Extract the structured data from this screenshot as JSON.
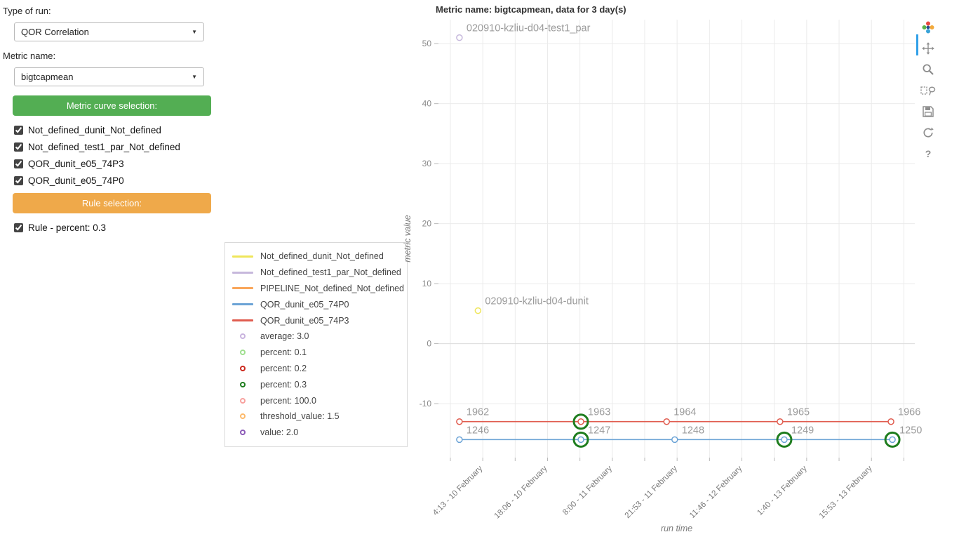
{
  "icons": {
    "caret": "▼",
    "help": "?"
  },
  "left_panel": {
    "type_of_run_label": "Type of run:",
    "type_of_run_value": "QOR Correlation",
    "metric_name_label": "Metric name:",
    "metric_name_value": "bigtcapmean",
    "metric_curve_button": "Metric curve selection:",
    "metric_curve_button_color": "#53ae53",
    "rule_button": "Rule selection:",
    "rule_button_color": "#efa94a",
    "curve_checkboxes": [
      {
        "label": "Not_defined_dunit_Not_defined",
        "checked": true
      },
      {
        "label": "Not_defined_test1_par_Not_defined",
        "checked": true
      },
      {
        "label": "QOR_dunit_e05_74P3",
        "checked": true
      },
      {
        "label": "QOR_dunit_e05_74P0",
        "checked": true
      }
    ],
    "rule_checkboxes": [
      {
        "label": "Rule - percent: 0.3",
        "checked": true
      }
    ]
  },
  "legend": {
    "line_items": [
      {
        "label": "Not_defined_dunit_Not_defined",
        "color": "#efe65a"
      },
      {
        "label": "Not_defined_test1_par_Not_defined",
        "color": "#c6b8dc"
      },
      {
        "label": "PIPELINE_Not_defined_Not_defined",
        "color": "#f9a65a"
      },
      {
        "label": "QOR_dunit_e05_74P0",
        "color": "#6ba3d6"
      },
      {
        "label": "QOR_dunit_e05_74P3",
        "color": "#e05c4f"
      }
    ],
    "marker_items": [
      {
        "label": "average: 3.0",
        "color": "#c9b3de"
      },
      {
        "label": "percent: 0.1",
        "color": "#9fdf8f"
      },
      {
        "label": "percent: 0.2",
        "color": "#cc2a1f"
      },
      {
        "label": "percent: 0.3",
        "color": "#1e7d1e"
      },
      {
        "label": "percent: 100.0",
        "color": "#f8a19e"
      },
      {
        "label": "threshold_value: 1.5",
        "color": "#fdba6b"
      },
      {
        "label": "value: 2.0",
        "color": "#8c5bb8"
      }
    ]
  },
  "modebar": {
    "help_label": "?",
    "logo_colors": [
      "#e8483f",
      "#f2a93b",
      "#3aa3d8",
      "#5ab349",
      "#274b8f"
    ]
  },
  "chart_data": {
    "type": "scatter",
    "title": "Metric name: bigtcapmean, data for 3 day(s)",
    "xlabel": "run time",
    "ylabel": "metric value",
    "ylim": [
      -19,
      54
    ],
    "y_ticks": [
      -10,
      0,
      10,
      20,
      30,
      40,
      50
    ],
    "x_ticks": [
      {
        "label": "4:13 - 10 February",
        "pos": 0.093
      },
      {
        "label": "18:06 - 10 February",
        "pos": 0.229
      },
      {
        "label": "8:00 - 11 February",
        "pos": 0.365
      },
      {
        "label": "21:53 - 11 February",
        "pos": 0.502
      },
      {
        "label": "11:46 - 12 February",
        "pos": 0.638
      },
      {
        "label": "1:40 - 13 February",
        "pos": 0.774
      },
      {
        "label": "15:53 - 13 February",
        "pos": 0.911
      }
    ],
    "rule_marker": {
      "name": "Rule - percent: 0.3",
      "color": "#1e7d1e"
    },
    "series": [
      {
        "name": "Not_defined_test1_par_Not_defined",
        "color": "#c6b8dc",
        "mode": "point",
        "points": [
          {
            "x": 0.044,
            "y": 51,
            "label": "020910-kzliu-d04-test1_par"
          }
        ]
      },
      {
        "name": "Not_defined_dunit_Not_defined",
        "color": "#efe65a",
        "mode": "point",
        "points": [
          {
            "x": 0.083,
            "y": 5.5,
            "label": "020910-kzliu-d04-dunit"
          }
        ]
      },
      {
        "name": "QOR_dunit_e05_74P3",
        "color": "#e05c4f",
        "mode": "line",
        "y": -13,
        "points": [
          {
            "x": 0.044,
            "label": "1962"
          },
          {
            "x": 0.299,
            "label": "1963",
            "rule": true
          },
          {
            "x": 0.479,
            "label": "1964"
          },
          {
            "x": 0.717,
            "label": "1965"
          },
          {
            "x": 0.95,
            "label": "1966"
          }
        ]
      },
      {
        "name": "QOR_dunit_e05_74P0",
        "color": "#6ba3d6",
        "mode": "line",
        "y": -16,
        "points": [
          {
            "x": 0.044,
            "label": "1246"
          },
          {
            "x": 0.299,
            "label": "1247",
            "rule": true
          },
          {
            "x": 0.496,
            "label": "1248"
          },
          {
            "x": 0.726,
            "label": "1249",
            "rule": true
          },
          {
            "x": 0.953,
            "label": "1250",
            "rule": true
          }
        ]
      }
    ]
  }
}
